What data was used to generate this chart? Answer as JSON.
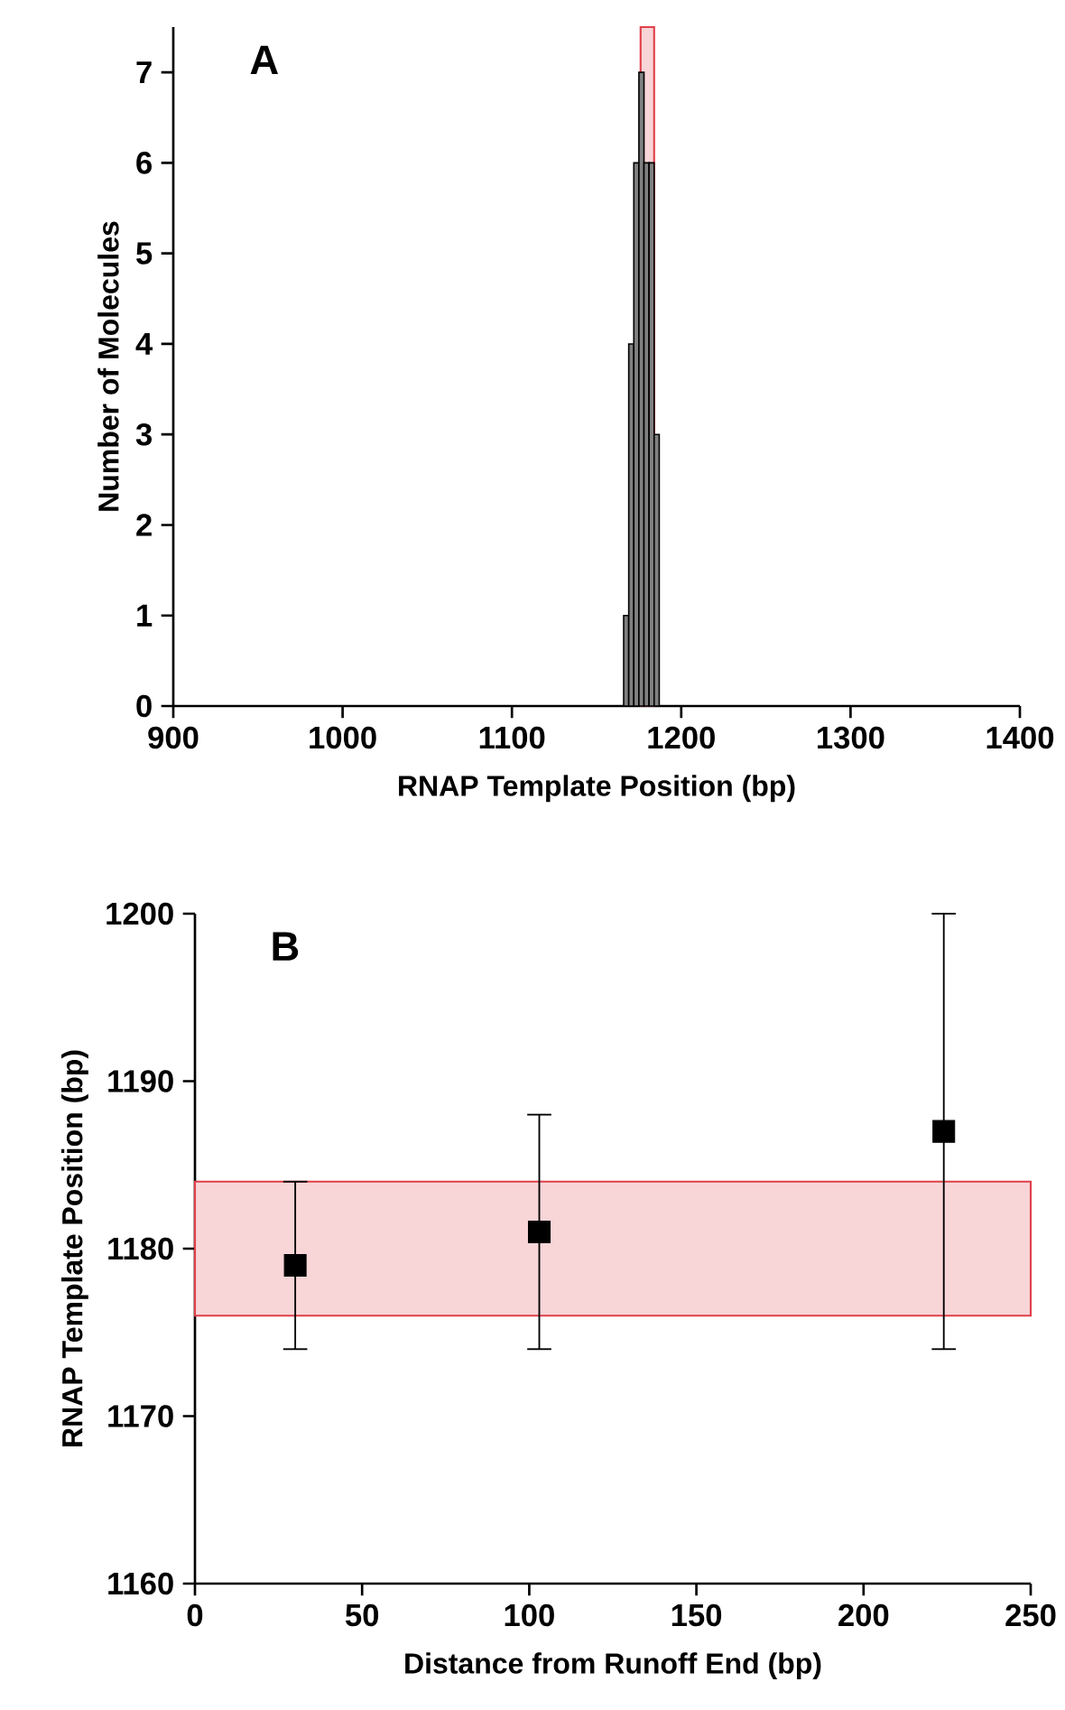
{
  "chart_data": [
    {
      "type": "histogram",
      "title": "A",
      "xlabel": "RNAP Template Position (bp)",
      "ylabel": "Number of Molecules",
      "bins": [
        1166,
        1169,
        1172,
        1175,
        1178,
        1181,
        1184,
        1187
      ],
      "values": [
        1,
        4,
        6,
        7,
        6,
        6,
        3
      ],
      "color": "#808080",
      "xlim": [
        900,
        1400
      ],
      "xticks": [
        900,
        1000,
        1100,
        1200,
        1300,
        1400
      ],
      "ylim": [
        0,
        7.5
      ],
      "yticks": [
        0,
        1,
        2,
        3,
        4,
        5,
        6,
        7
      ],
      "bands": [
        {
          "axis": "x",
          "from": 1176,
          "to": 1184,
          "color": "#e0404a"
        }
      ]
    },
    {
      "type": "scatter",
      "title": "B",
      "xlabel": "Distance from Runoff End (bp)",
      "ylabel": "RNAP Template Position (bp)",
      "x": [
        30,
        103,
        224
      ],
      "values": [
        1179,
        1181,
        1187
      ],
      "errors": [
        [
          1174,
          1184
        ],
        [
          1174,
          1188
        ],
        [
          1174,
          1200
        ]
      ],
      "color": "#000000",
      "marker": "square",
      "xlim": [
        0,
        250
      ],
      "xticks": [
        0,
        50,
        100,
        150,
        200,
        250
      ],
      "ylim": [
        1160,
        1200
      ],
      "yticks": [
        1160,
        1170,
        1180,
        1190,
        1200
      ],
      "bands": [
        {
          "axis": "y",
          "from": 1176,
          "to": 1184,
          "color": "#e0404a"
        }
      ]
    }
  ]
}
